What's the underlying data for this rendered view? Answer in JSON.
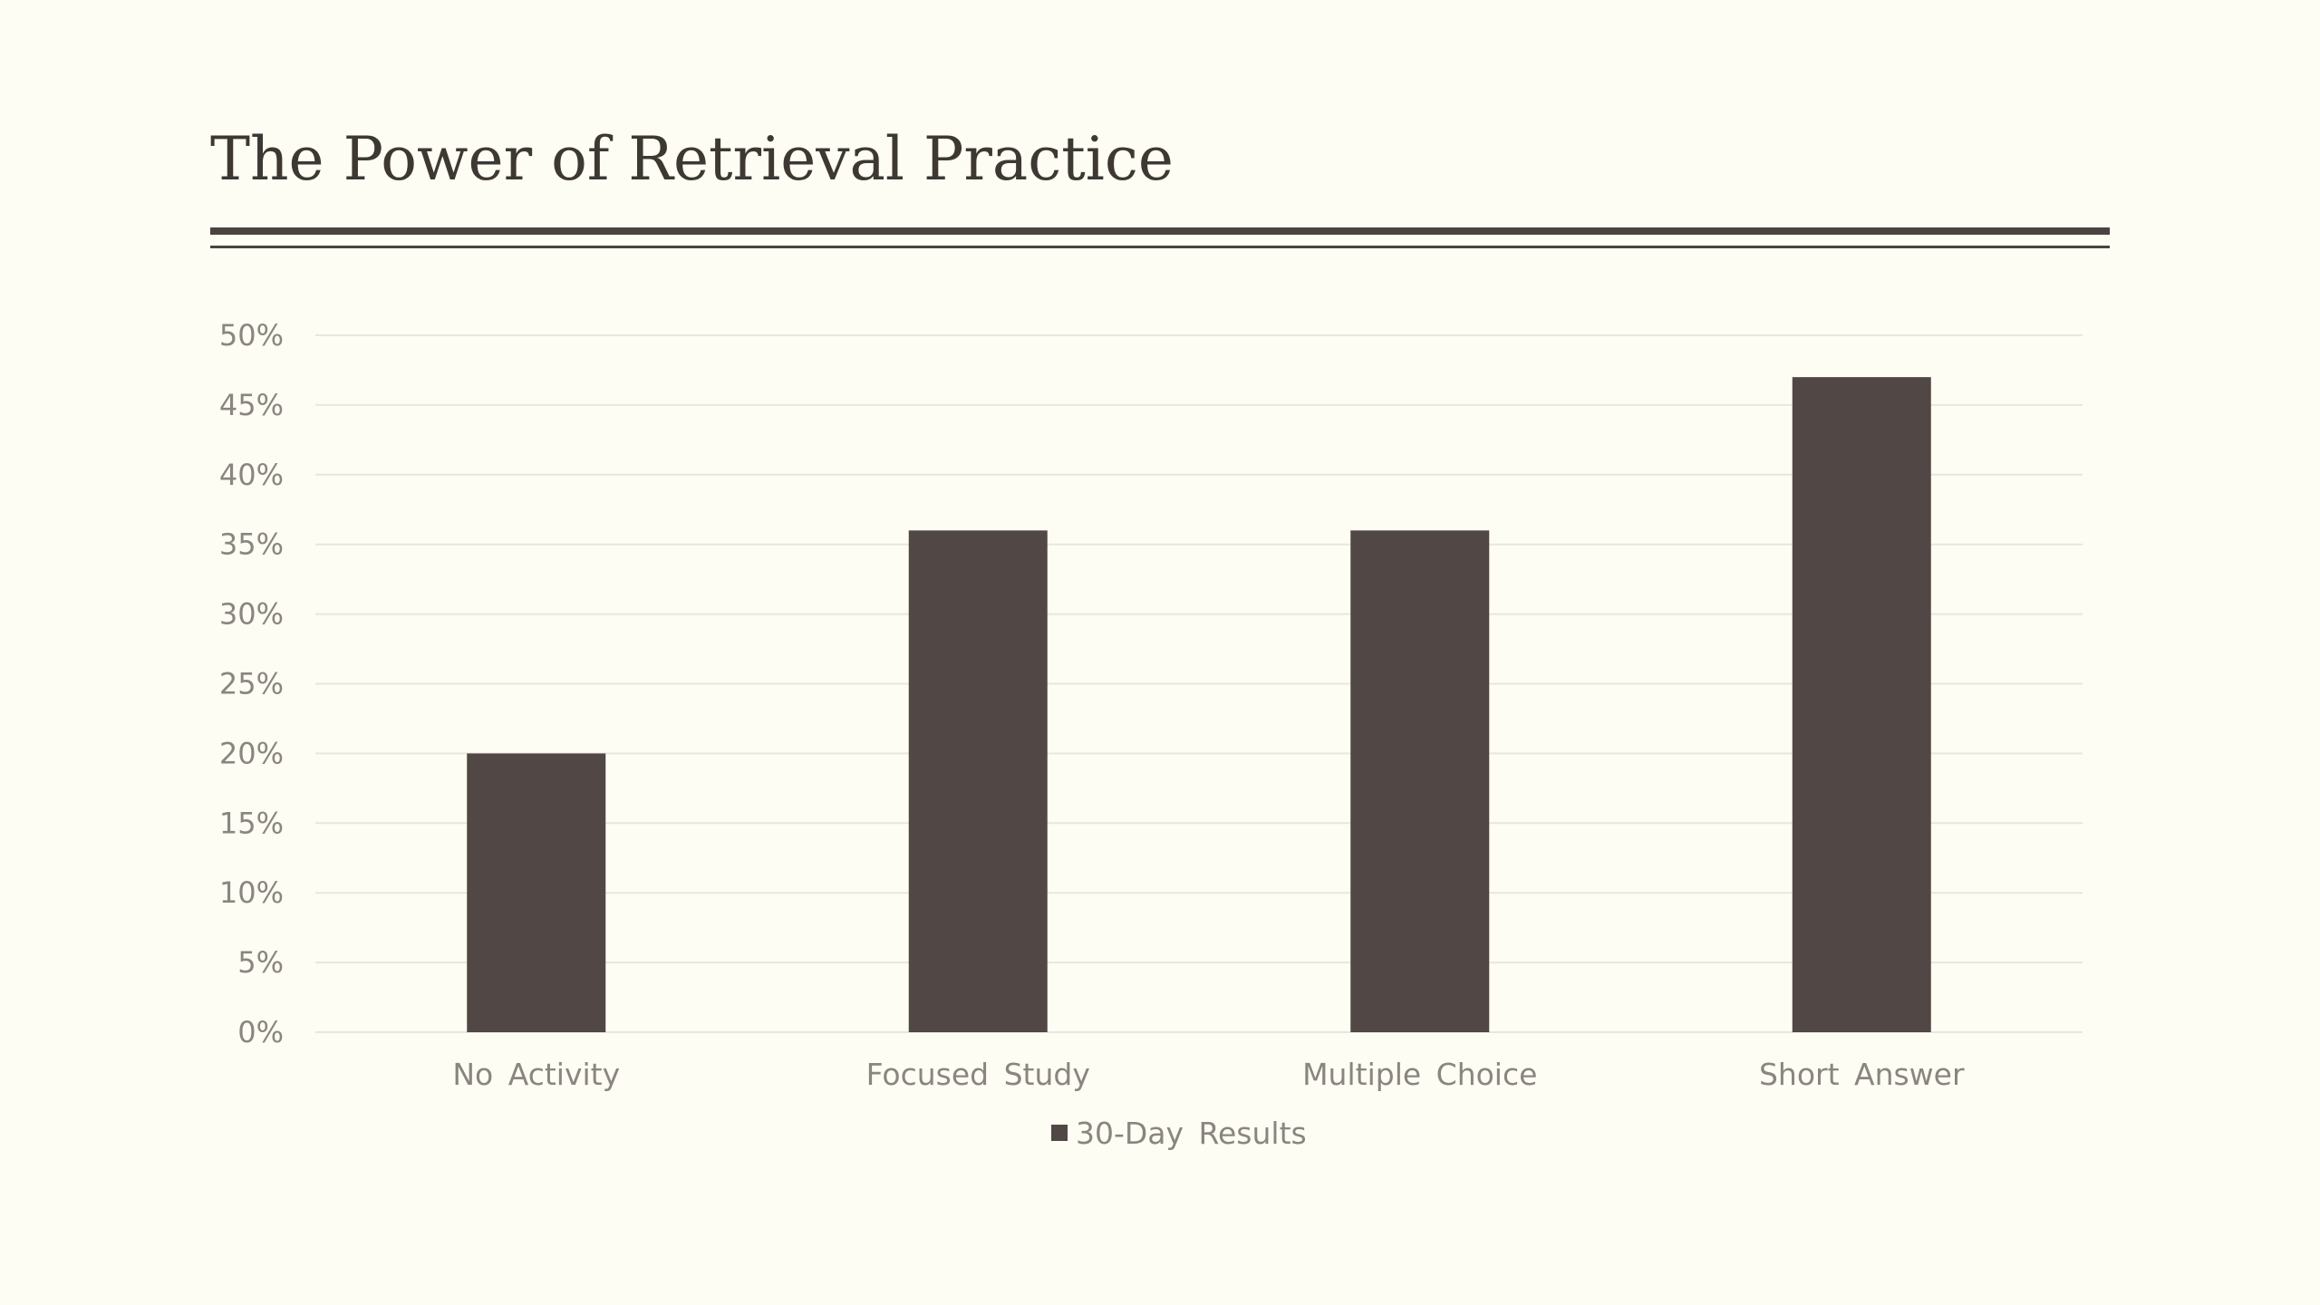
{
  "slide": {
    "title": "The Power of Retrieval Practice"
  },
  "colors": {
    "background": "#fefdf3",
    "bar": "#514744",
    "title": "#3e3833",
    "rule": "#4a433f",
    "gridline": "#e9e7dd",
    "axis_text": "#8a8580"
  },
  "chart_data": {
    "type": "bar",
    "categories": [
      "No Activity",
      "Focused Study",
      "Multiple Choice",
      "Short Answer"
    ],
    "series": [
      {
        "name": "30-Day Results",
        "values": [
          0.2,
          0.36,
          0.36,
          0.47
        ]
      }
    ],
    "y_ticks": [
      "0%",
      "5%",
      "10%",
      "15%",
      "20%",
      "25%",
      "30%",
      "35%",
      "40%",
      "45%",
      "50%"
    ],
    "ylim": [
      0,
      0.5
    ],
    "grid": true,
    "legend_position": "bottom"
  }
}
